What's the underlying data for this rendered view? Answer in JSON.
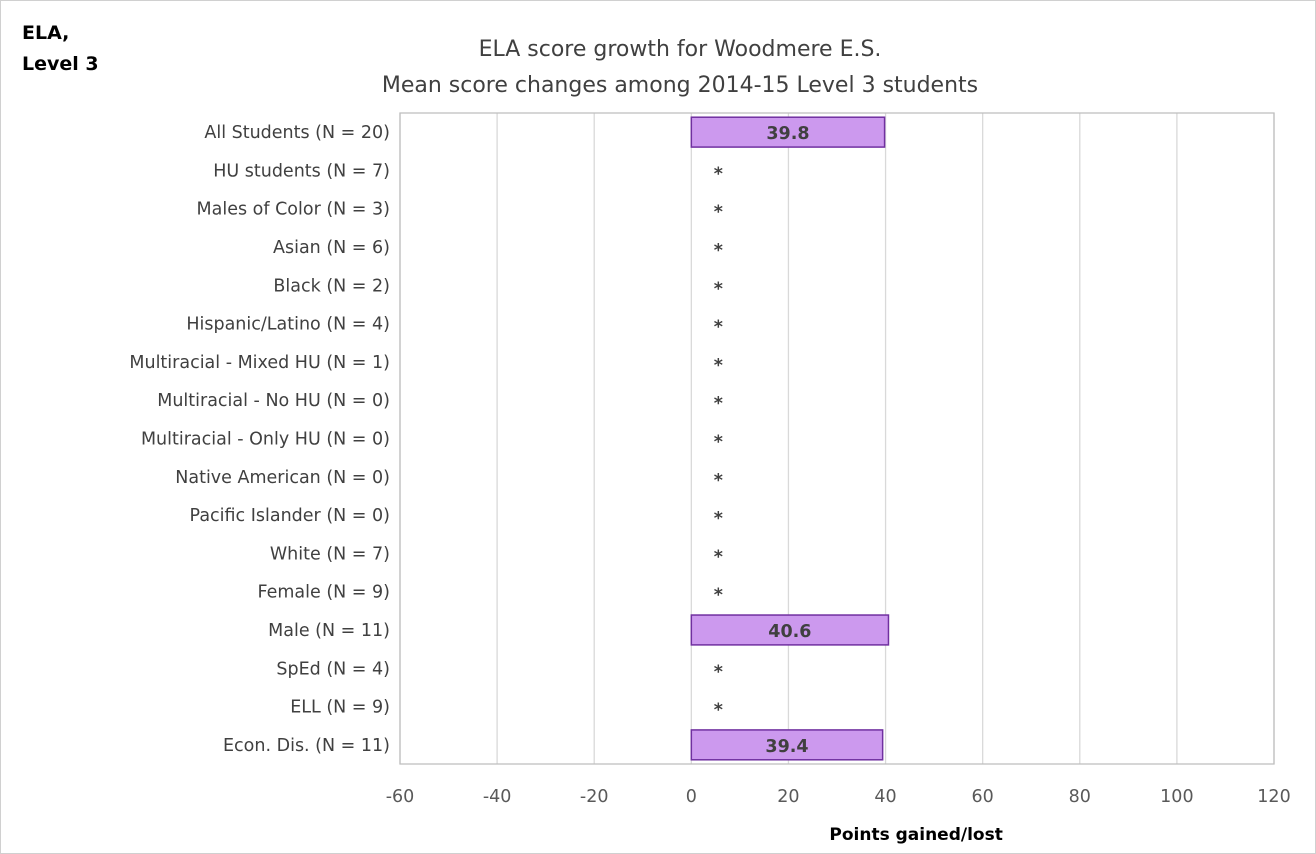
{
  "corner_label": "ELA,\nLevel 3",
  "chart_data": {
    "type": "bar",
    "orientation": "horizontal",
    "title": "ELA score growth for Woodmere E.S.",
    "subtitle": "Mean score changes among 2014-15 Level 3 students",
    "xlabel": "Points gained/lost",
    "ylabel": "",
    "xlim": [
      -60,
      120
    ],
    "x_ticks": [
      -60,
      -40,
      -20,
      0,
      20,
      40,
      60,
      80,
      100,
      120
    ],
    "grid": true,
    "legend": "none",
    "categories": [
      "All Students (N = 20)",
      "HU students (N = 7)",
      "Males of Color (N = 3)",
      "Asian (N = 6)",
      "Black (N = 2)",
      "Hispanic/Latino (N = 4)",
      "Multiracial - Mixed HU (N = 1)",
      "Multiracial - No HU (N = 0)",
      "Multiracial - Only HU (N = 0)",
      "Native American (N = 0)",
      "Pacific Islander (N = 0)",
      "White (N = 7)",
      "Female (N = 9)",
      "Male (N = 11)",
      "SpEd (N = 4)",
      "ELL (N = 9)",
      "Econ. Dis. (N = 11)"
    ],
    "values": [
      39.8,
      null,
      null,
      null,
      null,
      null,
      null,
      null,
      null,
      null,
      null,
      null,
      null,
      40.6,
      null,
      null,
      39.4
    ],
    "data_labels": [
      "39.8",
      "*",
      "*",
      "*",
      "*",
      "*",
      "*",
      "*",
      "*",
      "*",
      "*",
      "*",
      "*",
      "40.6",
      "*",
      "*",
      "39.4"
    ],
    "colors": {
      "bar_fill": "#cc99ee",
      "bar_stroke": "#7030a0",
      "grid": "#d9d9d9",
      "plot_border": "#bfbfbf"
    }
  }
}
